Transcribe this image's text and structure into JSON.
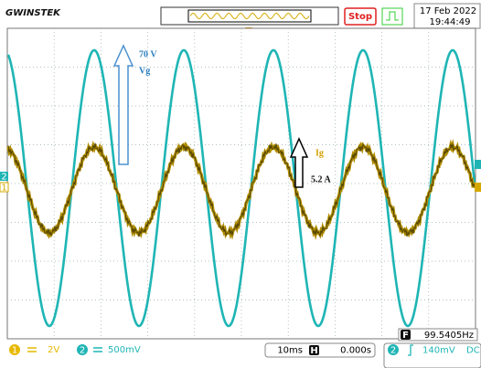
{
  "header": {
    "logo": "GWINSTEK",
    "status": "Stop",
    "date": "17 Feb 2022",
    "time": "19:44:49"
  },
  "annotations": {
    "voltage_amplitude": "70 V",
    "voltage_label": "Vg",
    "current_label": "Ig",
    "current_amplitude": "5.2 A"
  },
  "markers": {
    "ch2": "2",
    "ch1": "1"
  },
  "frequency": {
    "icon": "F",
    "value": "99.5405Hz"
  },
  "footer": {
    "ch1_id": "1",
    "ch1_scale": "2V",
    "ch2_id": "2",
    "ch2_scale": "500mV",
    "timebase": "10ms",
    "position_icon": "H",
    "horizontal_position": "0.000s",
    "trigger_source": "2",
    "trigger_level": "140mV",
    "coupling": "DC"
  }
}
